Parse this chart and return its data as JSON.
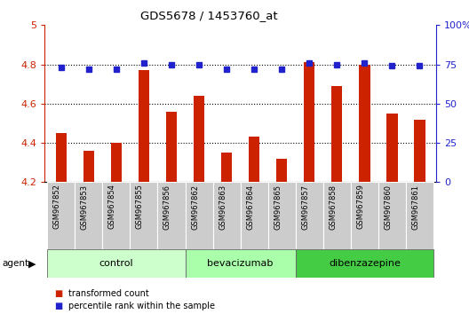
{
  "title": "GDS5678 / 1453760_at",
  "samples": [
    "GSM967852",
    "GSM967853",
    "GSM967854",
    "GSM967855",
    "GSM967856",
    "GSM967862",
    "GSM967863",
    "GSM967864",
    "GSM967865",
    "GSM967857",
    "GSM967858",
    "GSM967859",
    "GSM967860",
    "GSM967861"
  ],
  "bar_values": [
    4.45,
    4.36,
    4.4,
    4.77,
    4.56,
    4.64,
    4.35,
    4.43,
    4.32,
    4.81,
    4.69,
    4.8,
    4.55,
    4.52
  ],
  "percentile_values": [
    73,
    72,
    72,
    76,
    75,
    75,
    72,
    72,
    72,
    76,
    75,
    76,
    74,
    74
  ],
  "ylim": [
    4.2,
    5.0
  ],
  "yticks": [
    4.2,
    4.4,
    4.6,
    4.8,
    5.0
  ],
  "ytick_labels": [
    "4.2",
    "4.4",
    "4.6",
    "4.8",
    "5"
  ],
  "y2lim": [
    0,
    100
  ],
  "y2ticks": [
    0,
    25,
    50,
    75,
    100
  ],
  "y2ticklabels": [
    "0",
    "25",
    "50",
    "75",
    "100%"
  ],
  "grid_lines": [
    4.4,
    4.6,
    4.8
  ],
  "bar_color": "#cc2200",
  "dot_color": "#2222cc",
  "title_color": "#000000",
  "left_axis_color": "#cc2200",
  "right_axis_color": "#2222cc",
  "groups": [
    {
      "label": "control",
      "start": 0,
      "end": 5,
      "color": "#ccffcc"
    },
    {
      "label": "bevacizumab",
      "start": 5,
      "end": 9,
      "color": "#aaffaa"
    },
    {
      "label": "dibenzazepine",
      "start": 9,
      "end": 14,
      "color": "#44cc44"
    }
  ],
  "agent_label": "agent",
  "legend_bar_label": "transformed count",
  "legend_dot_label": "percentile rank within the sample",
  "background_color": "#ffffff",
  "tick_label_area_color": "#cccccc",
  "bar_width": 0.4,
  "dot_size": 4
}
